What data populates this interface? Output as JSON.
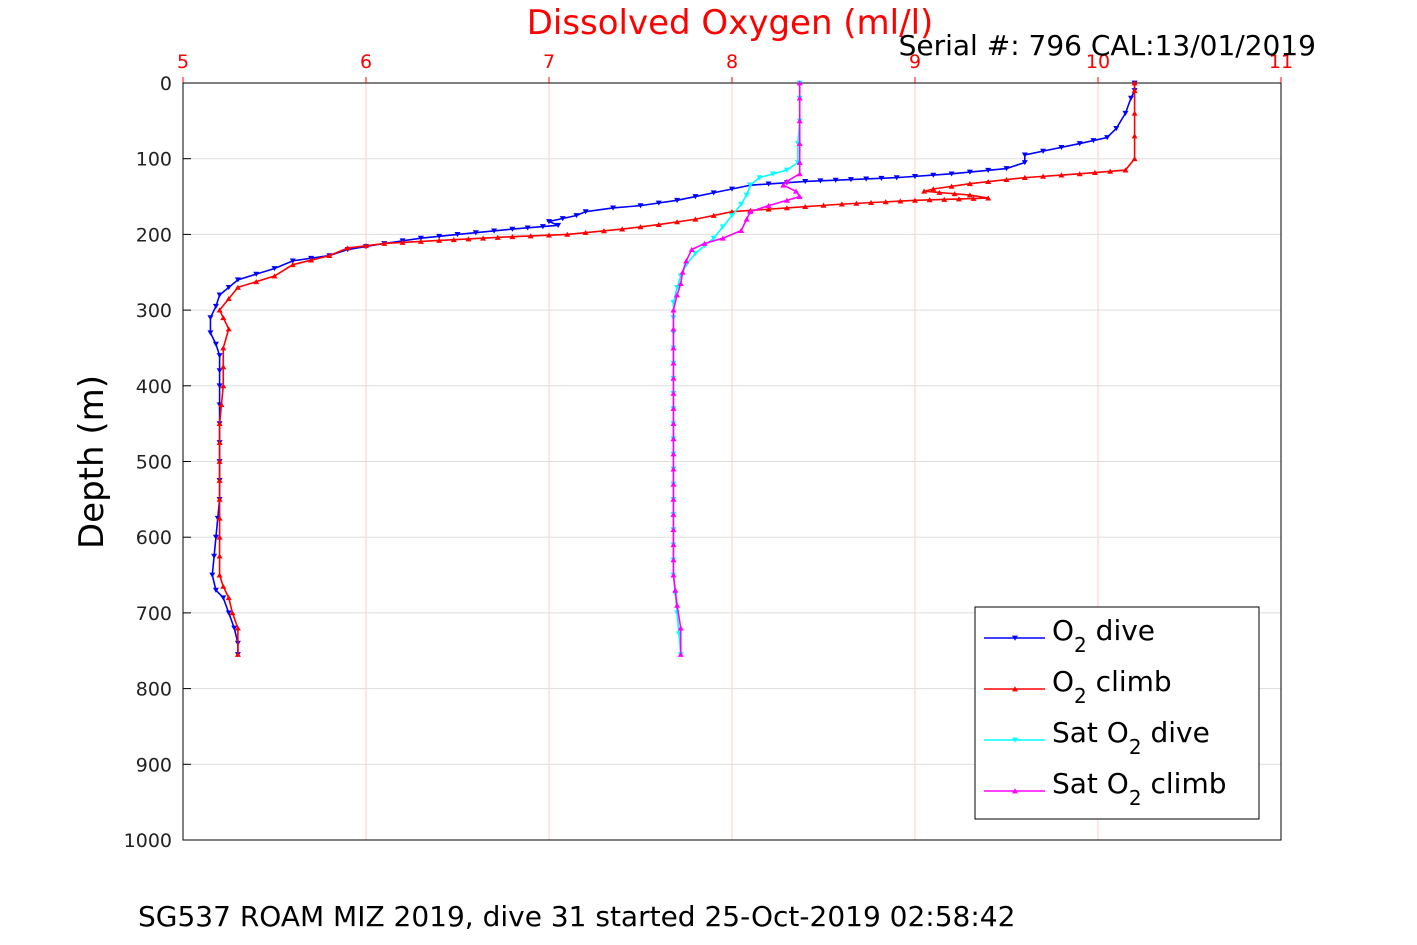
{
  "chart_data": {
    "type": "line",
    "title": "Dissolved Oxygen (ml/l)",
    "serial_label": "Serial #: 796  CAL:13/01/2019",
    "ylabel": "Depth (m)",
    "footer": "SG537 ROAM MIZ 2019, dive 31 started 25-Oct-2019 02:58:42",
    "xlim": [
      5,
      11
    ],
    "ylim": [
      0,
      1000
    ],
    "y_reversed": true,
    "x_axis_position": "top",
    "x_ticks": [
      "5",
      "6",
      "7",
      "8",
      "9",
      "10",
      "11"
    ],
    "y_ticks": [
      "0",
      "100",
      "200",
      "300",
      "400",
      "500",
      "600",
      "700",
      "800",
      "900",
      "1000"
    ],
    "grid": true,
    "legend_position": "bottom-right",
    "legend": [
      {
        "prefix": "O",
        "sub": "2",
        "suffix": " dive",
        "color": "#0000ff",
        "marker": "triangle-down"
      },
      {
        "prefix": "O",
        "sub": "2",
        "suffix": " climb",
        "color": "#ff0000",
        "marker": "triangle-up"
      },
      {
        "prefix": "Sat O",
        "sub": "2",
        "suffix": " dive",
        "color": "#00ffff",
        "marker": "triangle-down"
      },
      {
        "prefix": "Sat O",
        "sub": "2",
        "suffix": " climb",
        "color": "#ff00ff",
        "marker": "triangle-up"
      }
    ],
    "series": [
      {
        "name": "O2 dive",
        "color": "#0000ff",
        "marker": "down",
        "points": [
          [
            10.2,
            0
          ],
          [
            10.2,
            10
          ],
          [
            10.18,
            20
          ],
          [
            10.15,
            40
          ],
          [
            10.1,
            60
          ],
          [
            10.05,
            72
          ],
          [
            9.9,
            80
          ],
          [
            9.7,
            90
          ],
          [
            9.6,
            95
          ],
          [
            9.6,
            105
          ],
          [
            9.5,
            113
          ],
          [
            9.2,
            120
          ],
          [
            8.9,
            125
          ],
          [
            8.4,
            130
          ],
          [
            8.1,
            135
          ],
          [
            8.0,
            140
          ],
          [
            7.9,
            145
          ],
          [
            7.8,
            150
          ],
          [
            7.7,
            155
          ],
          [
            7.5,
            162
          ],
          [
            7.35,
            165
          ],
          [
            7.2,
            170
          ],
          [
            7.15,
            175
          ],
          [
            7.0,
            183
          ],
          [
            7.05,
            188
          ],
          [
            6.8,
            193
          ],
          [
            6.5,
            200
          ],
          [
            6.3,
            205
          ],
          [
            6.1,
            212
          ],
          [
            5.9,
            220
          ],
          [
            5.8,
            228
          ],
          [
            5.6,
            235
          ],
          [
            5.5,
            245
          ],
          [
            5.3,
            260
          ],
          [
            5.25,
            270
          ],
          [
            5.2,
            280
          ],
          [
            5.18,
            295
          ],
          [
            5.15,
            310
          ],
          [
            5.15,
            330
          ],
          [
            5.18,
            345
          ],
          [
            5.2,
            360
          ],
          [
            5.2,
            400
          ],
          [
            5.2,
            450
          ],
          [
            5.2,
            500
          ],
          [
            5.2,
            550
          ],
          [
            5.18,
            600
          ],
          [
            5.16,
            650
          ],
          [
            5.18,
            670
          ],
          [
            5.22,
            680
          ],
          [
            5.25,
            700
          ],
          [
            5.28,
            720
          ],
          [
            5.3,
            740
          ],
          [
            5.3,
            755
          ]
        ]
      },
      {
        "name": "O2 climb",
        "color": "#ff0000",
        "marker": "up",
        "points": [
          [
            10.2,
            0
          ],
          [
            10.2,
            10
          ],
          [
            10.2,
            40
          ],
          [
            10.2,
            70
          ],
          [
            10.2,
            100
          ],
          [
            10.15,
            115
          ],
          [
            9.9,
            120
          ],
          [
            9.6,
            125
          ],
          [
            9.3,
            133
          ],
          [
            9.1,
            140
          ],
          [
            9.05,
            143
          ],
          [
            9.3,
            148
          ],
          [
            9.4,
            152
          ],
          [
            9.0,
            155
          ],
          [
            8.6,
            160
          ],
          [
            8.3,
            165
          ],
          [
            8.0,
            170
          ],
          [
            7.8,
            180
          ],
          [
            7.6,
            187
          ],
          [
            7.4,
            193
          ],
          [
            7.1,
            200
          ],
          [
            6.8,
            203
          ],
          [
            6.4,
            208
          ],
          [
            6.1,
            212
          ],
          [
            5.9,
            218
          ],
          [
            5.8,
            228
          ],
          [
            5.6,
            240
          ],
          [
            5.5,
            255
          ],
          [
            5.3,
            270
          ],
          [
            5.25,
            285
          ],
          [
            5.2,
            300
          ],
          [
            5.22,
            310
          ],
          [
            5.25,
            325
          ],
          [
            5.22,
            350
          ],
          [
            5.22,
            400
          ],
          [
            5.2,
            450
          ],
          [
            5.2,
            500
          ],
          [
            5.2,
            550
          ],
          [
            5.2,
            600
          ],
          [
            5.2,
            650
          ],
          [
            5.22,
            665
          ],
          [
            5.25,
            680
          ],
          [
            5.27,
            700
          ],
          [
            5.3,
            720
          ],
          [
            5.3,
            755
          ]
        ]
      },
      {
        "name": "Sat O2 dive",
        "color": "#00ffff",
        "marker": "down",
        "points": [
          [
            8.37,
            0
          ],
          [
            8.37,
            20
          ],
          [
            8.37,
            50
          ],
          [
            8.36,
            80
          ],
          [
            8.36,
            105
          ],
          [
            8.3,
            115
          ],
          [
            8.15,
            125
          ],
          [
            8.1,
            135
          ],
          [
            8.08,
            148
          ],
          [
            8.05,
            160
          ],
          [
            8.0,
            175
          ],
          [
            7.95,
            190
          ],
          [
            7.9,
            205
          ],
          [
            7.85,
            215
          ],
          [
            7.8,
            225
          ],
          [
            7.75,
            240
          ],
          [
            7.72,
            255
          ],
          [
            7.7,
            270
          ],
          [
            7.68,
            290
          ],
          [
            7.68,
            350
          ],
          [
            7.68,
            450
          ],
          [
            7.68,
            550
          ],
          [
            7.68,
            650
          ],
          [
            7.7,
            700
          ],
          [
            7.72,
            755
          ]
        ]
      },
      {
        "name": "Sat O2 climb",
        "color": "#ff00ff",
        "marker": "up",
        "points": [
          [
            8.37,
            0
          ],
          [
            8.37,
            20
          ],
          [
            8.37,
            50
          ],
          [
            8.37,
            80
          ],
          [
            8.37,
            105
          ],
          [
            8.37,
            120
          ],
          [
            8.3,
            130
          ],
          [
            8.28,
            135
          ],
          [
            8.35,
            143
          ],
          [
            8.37,
            150
          ],
          [
            8.3,
            155
          ],
          [
            8.2,
            162
          ],
          [
            8.1,
            170
          ],
          [
            8.08,
            180
          ],
          [
            8.05,
            195
          ],
          [
            7.95,
            205
          ],
          [
            7.85,
            212
          ],
          [
            7.78,
            220
          ],
          [
            7.75,
            235
          ],
          [
            7.73,
            250
          ],
          [
            7.72,
            265
          ],
          [
            7.7,
            280
          ],
          [
            7.68,
            300
          ],
          [
            7.68,
            350
          ],
          [
            7.68,
            450
          ],
          [
            7.68,
            550
          ],
          [
            7.68,
            650
          ],
          [
            7.7,
            690
          ],
          [
            7.72,
            720
          ],
          [
            7.72,
            755
          ]
        ]
      }
    ]
  }
}
